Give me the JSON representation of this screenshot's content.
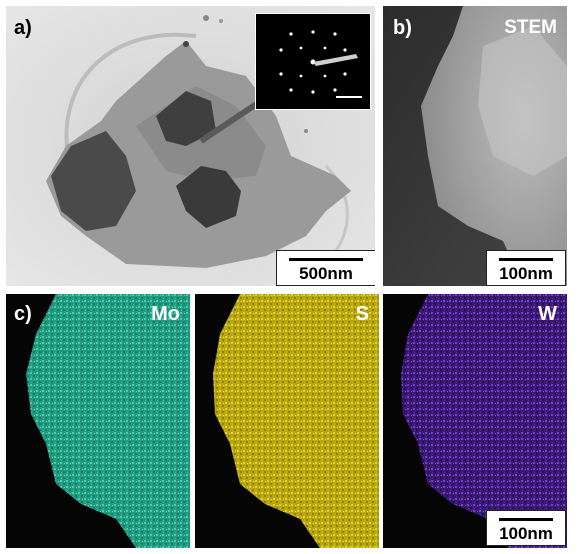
{
  "panels": {
    "a": {
      "label": "a)",
      "scale": "500nm"
    },
    "b": {
      "label": "b)",
      "mode": "STEM",
      "scale": "100nm"
    },
    "c": {
      "label": "c)"
    },
    "mo": {
      "element": "Mo",
      "color": "#2fb99a"
    },
    "s": {
      "element": "S",
      "color": "#d8c21a"
    },
    "w": {
      "element": "W",
      "color": "#6a2cc0",
      "scale": "100nm"
    }
  },
  "colors": {
    "tem_background": "#dcdcdc",
    "stem_background": "#3a3a3a",
    "map_background": "#050505"
  }
}
